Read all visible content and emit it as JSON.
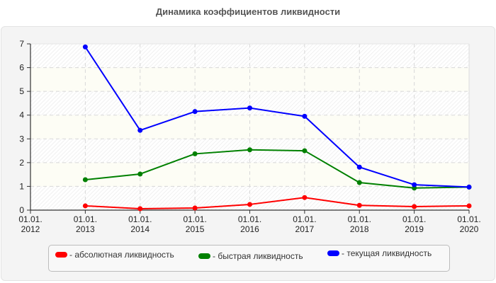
{
  "chart_data": {
    "type": "line",
    "title": "Динамика коэффициентов ликвидности",
    "xlabel": "",
    "ylabel": "",
    "x": [
      "01.01.2012",
      "01.01.2013",
      "01.01.2014",
      "01.01.2015",
      "01.01.2016",
      "01.01.2017",
      "01.01.2018",
      "01.01.2019",
      "01.01.2020"
    ],
    "x_tick_labels": [
      [
        "01.01.",
        "2012"
      ],
      [
        "01.01.",
        "2013"
      ],
      [
        "01.01.",
        "2014"
      ],
      [
        "01.01.",
        "2015"
      ],
      [
        "01.01.",
        "2016"
      ],
      [
        "01.01.",
        "2017"
      ],
      [
        "01.01.",
        "2018"
      ],
      [
        "01.01.",
        "2019"
      ],
      [
        "01.01.",
        "2020"
      ]
    ],
    "y_ticks": [
      0,
      1,
      2,
      3,
      4,
      5,
      6,
      7
    ],
    "ylim": [
      0,
      7
    ],
    "grid": true,
    "legend_position": "bottom",
    "series": [
      {
        "name": "абсолютная ликвидность",
        "color": "#ff0000",
        "values": [
          null,
          0.18,
          0.06,
          0.09,
          0.24,
          0.53,
          0.2,
          0.15,
          0.18
        ]
      },
      {
        "name": "быстрая ликвидность",
        "color": "#008000",
        "values": [
          null,
          1.28,
          1.52,
          2.37,
          2.54,
          2.5,
          1.16,
          0.93,
          0.97
        ]
      },
      {
        "name": "текущая ликвидность",
        "color": "#0000ff",
        "values": [
          null,
          6.87,
          3.36,
          4.15,
          4.3,
          3.95,
          1.81,
          1.07,
          0.97
        ]
      }
    ]
  },
  "legend": {
    "items": [
      {
        "label": "- абсолютная ликвидность",
        "color": "#ff0000"
      },
      {
        "label": "- быстрая ликвидность",
        "color": "#008000"
      },
      {
        "label": "- текущая ликвидность",
        "color": "#0000ff"
      }
    ]
  }
}
